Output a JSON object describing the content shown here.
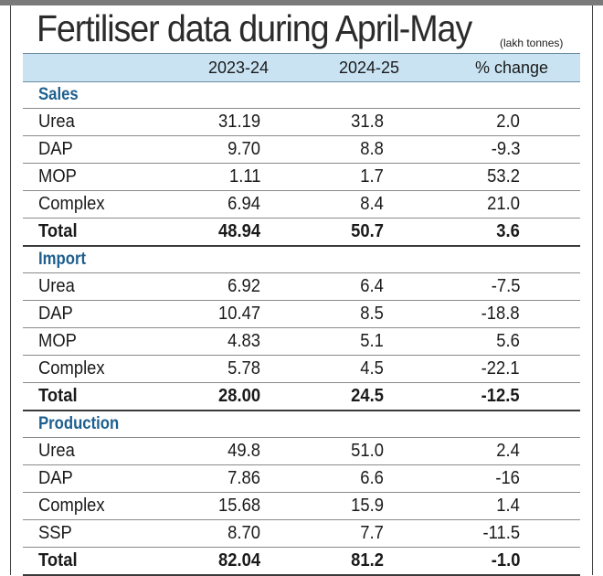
{
  "title": "Fertiliser data during April-May",
  "unit": "(lakh tonnes)",
  "columns": [
    "2023-24",
    "2024-25",
    "% change"
  ],
  "sections": [
    {
      "name": "Sales",
      "rows": [
        {
          "label": "Urea",
          "v1": "31.19",
          "v2": "31.8",
          "chg": "2.0"
        },
        {
          "label": "DAP",
          "v1": "9.70",
          "v2": "8.8",
          "chg": "-9.3"
        },
        {
          "label": "MOP",
          "v1": "1.11",
          "v2": "1.7",
          "chg": "53.2"
        },
        {
          "label": "Complex",
          "v1": "6.94",
          "v2": "8.4",
          "chg": "21.0"
        }
      ],
      "total": {
        "label": "Total",
        "v1": "48.94",
        "v2": "50.7",
        "chg": "3.6"
      }
    },
    {
      "name": "Import",
      "rows": [
        {
          "label": "Urea",
          "v1": "6.92",
          "v2": "6.4",
          "chg": "-7.5"
        },
        {
          "label": "DAP",
          "v1": "10.47",
          "v2": "8.5",
          "chg": "-18.8"
        },
        {
          "label": "MOP",
          "v1": "4.83",
          "v2": "5.1",
          "chg": "5.6"
        },
        {
          "label": "Complex",
          "v1": "5.78",
          "v2": "4.5",
          "chg": "-22.1"
        }
      ],
      "total": {
        "label": "Total",
        "v1": "28.00",
        "v2": "24.5",
        "chg": "-12.5"
      }
    },
    {
      "name": "Production",
      "rows": [
        {
          "label": "Urea",
          "v1": "49.8",
          "v2": "51.0",
          "chg": "2.4"
        },
        {
          "label": "DAP",
          "v1": "7.86",
          "v2": "6.6",
          "chg": "-16"
        },
        {
          "label": "Complex",
          "v1": "15.68",
          "v2": "15.9",
          "chg": "1.4"
        },
        {
          "label": "SSP",
          "v1": "8.70",
          "v2": "7.7",
          "chg": "-11.5"
        }
      ],
      "total": {
        "label": "Total",
        "v1": "82.04",
        "v2": "81.2",
        "chg": "-1.0"
      }
    }
  ]
}
